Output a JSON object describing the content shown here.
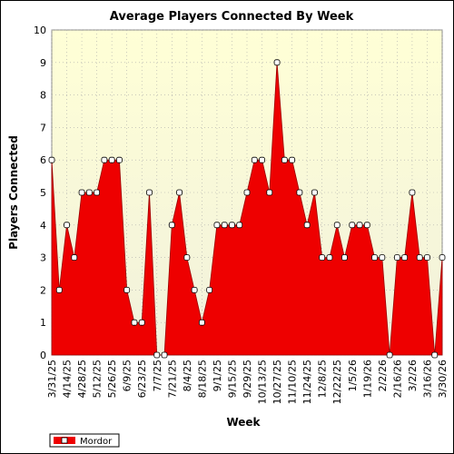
{
  "chart_data": {
    "type": "area",
    "title": "Average Players Connected By Week",
    "xlabel": "Week",
    "ylabel": "Players Connected",
    "ylim": [
      0,
      10
    ],
    "yticks": [
      0,
      1,
      2,
      3,
      4,
      5,
      6,
      7,
      8,
      9,
      10
    ],
    "grid": true,
    "legend_position": "bottom-left",
    "colors": {
      "fill": "#ee0000",
      "plot_bg_top": "#ffffdd",
      "plot_bg_bottom": "#f3f3dc",
      "grid": "#aaaaaa"
    },
    "x_tick_labels": [
      "3/31/25",
      "4/14/25",
      "4/28/25",
      "5/12/25",
      "5/26/25",
      "6/9/25",
      "6/23/25",
      "7/7/25",
      "7/21/25",
      "8/4/25",
      "8/18/25",
      "9/1/25",
      "9/15/25",
      "9/29/25",
      "10/13/25",
      "10/27/25",
      "11/10/25",
      "11/24/25",
      "12/8/25",
      "12/22/25",
      "1/5/26",
      "1/19/26",
      "2/2/26",
      "2/16/26",
      "3/2/26",
      "3/16/26",
      "3/30/26"
    ],
    "series": [
      {
        "name": "Mordor",
        "x": [
          "3/31/25",
          "4/7/25",
          "4/14/25",
          "4/21/25",
          "4/28/25",
          "5/5/25",
          "5/12/25",
          "5/19/25",
          "5/26/25",
          "6/2/25",
          "6/9/25",
          "6/16/25",
          "6/23/25",
          "6/30/25",
          "7/7/25",
          "7/14/25",
          "7/21/25",
          "7/28/25",
          "8/4/25",
          "8/11/25",
          "8/18/25",
          "8/25/25",
          "9/1/25",
          "9/8/25",
          "9/15/25",
          "9/22/25",
          "9/29/25",
          "10/6/25",
          "10/13/25",
          "10/20/25",
          "10/27/25",
          "11/3/25",
          "11/10/25",
          "11/17/25",
          "11/24/25",
          "12/1/25",
          "12/8/25",
          "12/15/25",
          "12/22/25",
          "12/29/25",
          "1/5/26",
          "1/12/26",
          "1/19/26",
          "1/26/26",
          "2/2/26",
          "2/9/26",
          "2/16/26",
          "2/23/26",
          "3/2/26",
          "3/9/26",
          "3/16/26",
          "3/23/26",
          "3/30/26"
        ],
        "values": [
          6,
          2,
          4,
          3,
          5,
          5,
          5,
          6,
          6,
          6,
          2,
          1,
          1,
          5,
          0,
          0,
          4,
          5,
          3,
          2,
          1,
          2,
          4,
          4,
          4,
          4,
          5,
          6,
          6,
          5,
          9,
          6,
          6,
          5,
          4,
          5,
          3,
          3,
          4,
          3,
          4,
          4,
          4,
          3,
          3,
          0,
          3,
          3,
          5,
          3,
          3,
          0,
          3
        ]
      }
    ]
  },
  "legend": {
    "label": "Mordor"
  }
}
